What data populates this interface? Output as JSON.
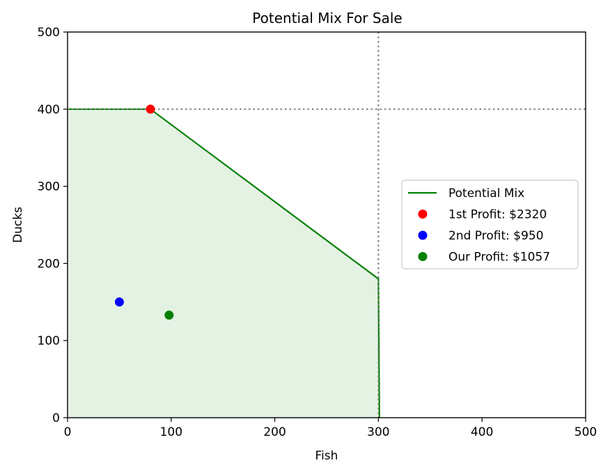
{
  "chart_data": {
    "type": "line",
    "title": "Potential Mix For Sale",
    "xlabel": "Fish",
    "ylabel": "Ducks",
    "xlim": [
      0,
      500
    ],
    "ylim": [
      0,
      500
    ],
    "xticks": [
      0,
      100,
      200,
      300,
      400,
      500
    ],
    "yticks": [
      0,
      100,
      200,
      300,
      400,
      500
    ],
    "grid": false,
    "legend_position": "center-right",
    "frontier": {
      "name": "Potential Mix",
      "color": "#008000",
      "fill_color": "#e4f2e4",
      "points": [
        [
          0,
          400
        ],
        [
          80,
          400
        ],
        [
          300,
          180
        ],
        [
          301,
          0
        ]
      ]
    },
    "reference_lines": [
      {
        "orientation": "vertical",
        "value": 300,
        "color": "#808080",
        "style": "dotted"
      },
      {
        "orientation": "horizontal",
        "value": 400,
        "color": "#808080",
        "style": "dotted"
      }
    ],
    "points": [
      {
        "name": "1st Profit: $2320",
        "x": 80,
        "y": 400,
        "color": "#ff0000"
      },
      {
        "name": "2nd Profit: $950",
        "x": 50,
        "y": 150,
        "color": "#0000ff"
      },
      {
        "name": "Our Profit: $1057",
        "x": 98,
        "y": 133,
        "color": "#008000"
      }
    ]
  }
}
